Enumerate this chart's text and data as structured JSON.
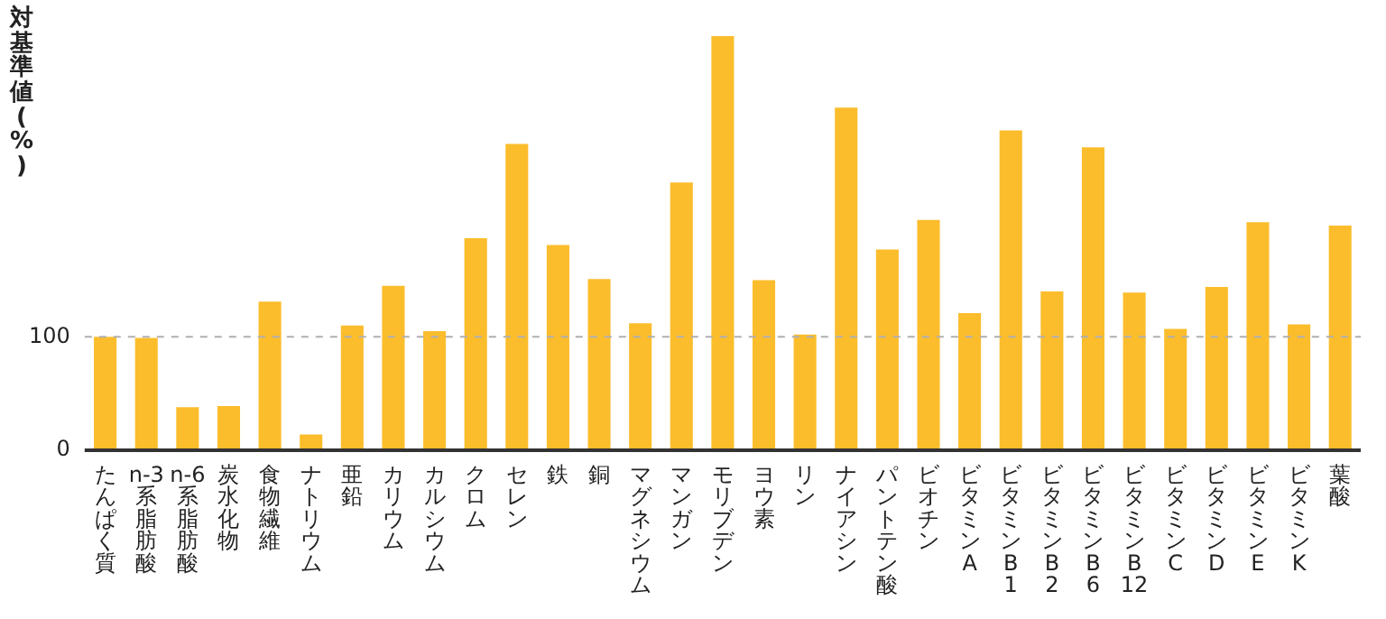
{
  "chart_data": {
    "type": "bar",
    "ylabel": "対基準値(%)",
    "categories": [
      "たんぱく質",
      "n-3系脂肪酸",
      "n-6系脂肪酸",
      "炭水化物",
      "食物繊維",
      "ナトリウム",
      "亜鉛",
      "カリウム",
      "カルシウム",
      "クロム",
      "セレン",
      "鉄",
      "銅",
      "マグネシウム",
      "マンガン",
      "モリブデン",
      "ヨウ素",
      "リン",
      "ナイアシン",
      "パントテン酸",
      "ビオチン",
      "ビタミンA",
      "ビタミンB1",
      "ビタミンB2",
      "ビタミンB6",
      "ビタミンB12",
      "ビタミンC",
      "ビタミンD",
      "ビタミンE",
      "ビタミンK",
      "葉酸"
    ],
    "values": [
      100,
      99,
      38,
      39,
      131,
      14,
      110,
      145,
      105,
      187,
      270,
      181,
      151,
      112,
      236,
      365,
      150,
      102,
      302,
      177,
      203,
      121,
      282,
      140,
      267,
      139,
      107,
      144,
      201,
      111,
      198
    ],
    "color": "#fbbd2c",
    "ylim": [
      0,
      365
    ],
    "yticks": [
      0,
      100
    ],
    "grid": false,
    "legend": false,
    "ref_lines": [
      {
        "axis": "y",
        "value": 100,
        "color": "#b0b0b0",
        "line_style": "dashed"
      }
    ]
  }
}
